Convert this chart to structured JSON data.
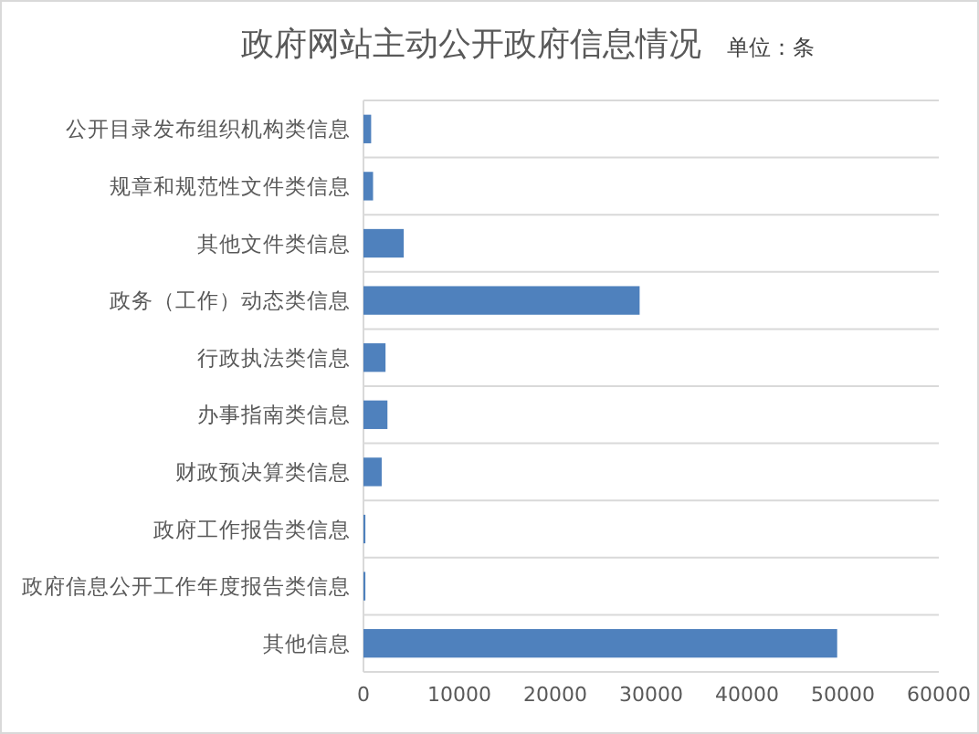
{
  "chart_data": {
    "type": "bar",
    "orientation": "horizontal",
    "title": "政府网站主动公开政府信息情况",
    "subtitle": "单位：条",
    "categories": [
      "公开目录发布组织机构类信息",
      "规章和规范性文件类信息",
      "其他文件类信息",
      "政务（工作）动态类信息",
      "行政执法类信息",
      "办事指南类信息",
      "财政预决算类信息",
      "政府工作报告类信息",
      "政府信息公开工作年度报告类信息",
      "其他信息"
    ],
    "values": [
      800,
      1000,
      4200,
      28800,
      2300,
      2500,
      1900,
      200,
      200,
      49400
    ],
    "color": "#4f81bd",
    "xlim": [
      0,
      60000
    ],
    "xticks": [
      0,
      10000,
      20000,
      30000,
      40000,
      50000,
      60000
    ],
    "grid": "y"
  }
}
